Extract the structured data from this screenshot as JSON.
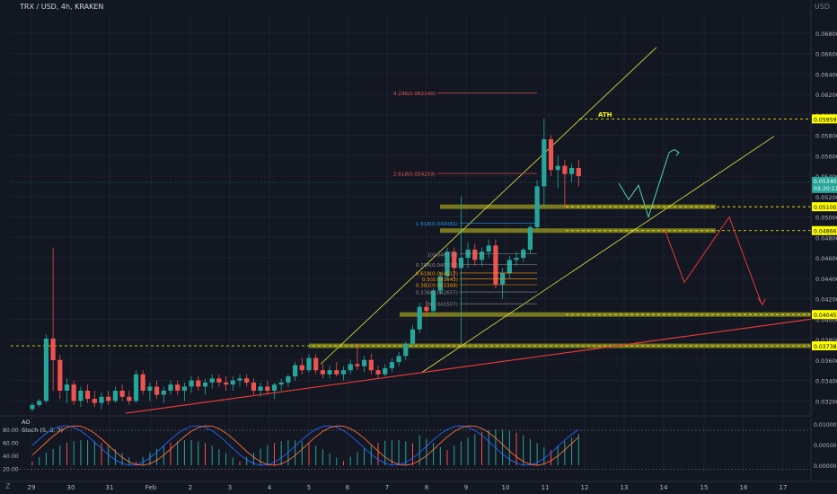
{
  "header": {
    "symbol_line": "TRX / USD, 4h, KRAKEN",
    "currency": "USD"
  },
  "indicators": {
    "ao_label": "AO",
    "stoch_label": "Stoch (5, 3, 3)"
  },
  "corners": {
    "bottom_left": "Z"
  },
  "colors": {
    "background": "#131722",
    "grid": "#1e2230",
    "bull": "#26a69a",
    "bear": "#ef5350",
    "channel": "#e6e63c",
    "trendline": "#e53935",
    "zone": "#8a8a1e",
    "projection_up": "#4fd6a0",
    "projection_down": "#e53935",
    "stoch_k": "#2962ff",
    "stoch_d": "#ff6d3b",
    "label_bg": "#ffff00"
  },
  "chart_data": {
    "type": "candlestick",
    "title": "TRX / USD, 4h, KRAKEN",
    "y_axis": {
      "unit": "USD",
      "range": [
        0.0308,
        0.07
      ],
      "ticks": [
        "0.068000",
        "0.066000",
        "0.064000",
        "0.062000",
        "0.060000",
        "0.058000",
        "0.056000",
        "0.054000",
        "0.052000",
        "0.050000",
        "0.048000",
        "0.046000",
        "0.044000",
        "0.042000",
        "0.040000",
        "0.038000",
        "0.036000",
        "0.034000",
        "0.032000"
      ]
    },
    "x_axis": {
      "ticks": [
        "29",
        "30",
        "31",
        "Feb",
        "2",
        "3",
        "4",
        "5",
        "6",
        "7",
        "8",
        "9",
        "10",
        "11",
        "12",
        "13",
        "14",
        "15",
        "16",
        "17"
      ],
      "range": [
        28.85,
        17.9
      ]
    },
    "horizontal_levels": [
      {
        "label": "0.059595",
        "value": 0.059595
      },
      {
        "label": "0.051000",
        "value": 0.051
      },
      {
        "label": "0.048665",
        "value": 0.048665
      },
      {
        "label": "0.040450",
        "value": 0.04045
      },
      {
        "label": "0.037389",
        "value": 0.037389
      }
    ],
    "current_price": {
      "label": "0.053400",
      "value": 0.0534
    },
    "countdown_label": "03:20:11",
    "annotations": [
      "ATH"
    ],
    "fibonacci": [
      {
        "label": "4.236(0.062140)",
        "value": 0.06214
      },
      {
        "label": "2.618(0.054259)",
        "value": 0.054259
      },
      {
        "label": "1.618(0.049381)",
        "value": 0.049381
      },
      {
        "label": "1(0.046378)",
        "value": 0.046378
      },
      {
        "label": "0.786(0.045336)",
        "value": 0.045336
      },
      {
        "label": "0.618(0.044517)",
        "value": 0.044517
      },
      {
        "label": "0.5(0.043943)",
        "value": 0.043943
      },
      {
        "label": "0.382(0.043368)",
        "value": 0.043368
      },
      {
        "label": "0.236(0.042657)",
        "value": 0.042657
      },
      {
        "label": "0(0.041507)",
        "value": 0.041507
      }
    ],
    "candles": [
      [
        0.0312,
        0.0318,
        0.031,
        0.0316
      ],
      [
        0.0316,
        0.0322,
        0.0314,
        0.032
      ],
      [
        0.032,
        0.0385,
        0.0318,
        0.0381
      ],
      [
        0.0381,
        0.047,
        0.033,
        0.036
      ],
      [
        0.036,
        0.0365,
        0.0322,
        0.033
      ],
      [
        0.033,
        0.0342,
        0.0318,
        0.0336
      ],
      [
        0.0336,
        0.034,
        0.0316,
        0.032
      ],
      [
        0.032,
        0.0334,
        0.0314,
        0.033
      ],
      [
        0.033,
        0.0336,
        0.0318,
        0.0322
      ],
      [
        0.0322,
        0.033,
        0.0314,
        0.0318
      ],
      [
        0.0318,
        0.0328,
        0.0312,
        0.0324
      ],
      [
        0.0324,
        0.033,
        0.0316,
        0.032
      ],
      [
        0.032,
        0.0334,
        0.0318,
        0.033
      ],
      [
        0.033,
        0.0336,
        0.032,
        0.0324
      ],
      [
        0.0324,
        0.033,
        0.0316,
        0.032
      ],
      [
        0.032,
        0.035,
        0.0318,
        0.0346
      ],
      [
        0.0346,
        0.035,
        0.0326,
        0.033
      ],
      [
        0.033,
        0.0338,
        0.032,
        0.0334
      ],
      [
        0.0334,
        0.034,
        0.0322,
        0.0326
      ],
      [
        0.0326,
        0.0334,
        0.0318,
        0.033
      ],
      [
        0.033,
        0.034,
        0.0326,
        0.0336
      ],
      [
        0.0336,
        0.034,
        0.0326,
        0.033
      ],
      [
        0.033,
        0.0338,
        0.032,
        0.0334
      ],
      [
        0.0334,
        0.0344,
        0.0328,
        0.034
      ],
      [
        0.034,
        0.0344,
        0.033,
        0.0334
      ],
      [
        0.0334,
        0.0342,
        0.0326,
        0.0338
      ],
      [
        0.0338,
        0.0346,
        0.0332,
        0.0342
      ],
      [
        0.0342,
        0.0346,
        0.0334,
        0.0338
      ],
      [
        0.0338,
        0.0344,
        0.033,
        0.0336
      ],
      [
        0.0336,
        0.0344,
        0.033,
        0.034
      ],
      [
        0.034,
        0.0346,
        0.0334,
        0.0342
      ],
      [
        0.0342,
        0.0346,
        0.0334,
        0.0338
      ],
      [
        0.0338,
        0.0342,
        0.0326,
        0.033
      ],
      [
        0.033,
        0.0338,
        0.0324,
        0.0334
      ],
      [
        0.0334,
        0.034,
        0.0326,
        0.033
      ],
      [
        0.033,
        0.0338,
        0.0322,
        0.0336
      ],
      [
        0.0336,
        0.0342,
        0.033,
        0.0338
      ],
      [
        0.0338,
        0.0346,
        0.0334,
        0.0344
      ],
      [
        0.0344,
        0.0358,
        0.034,
        0.0355
      ],
      [
        0.0355,
        0.0362,
        0.0346,
        0.035
      ],
      [
        0.035,
        0.0366,
        0.0348,
        0.0362
      ],
      [
        0.0362,
        0.0366,
        0.0346,
        0.035
      ],
      [
        0.035,
        0.0356,
        0.0342,
        0.0346
      ],
      [
        0.0346,
        0.0354,
        0.0342,
        0.035
      ],
      [
        0.035,
        0.0358,
        0.0344,
        0.0346
      ],
      [
        0.0346,
        0.0354,
        0.034,
        0.035
      ],
      [
        0.035,
        0.036,
        0.0346,
        0.0356
      ],
      [
        0.0356,
        0.0376,
        0.035,
        0.0354
      ],
      [
        0.0354,
        0.0364,
        0.0348,
        0.036
      ],
      [
        0.036,
        0.0366,
        0.0346,
        0.035
      ],
      [
        0.035,
        0.0354,
        0.0342,
        0.0346
      ],
      [
        0.0346,
        0.0356,
        0.0344,
        0.0352
      ],
      [
        0.0352,
        0.0362,
        0.0348,
        0.0358
      ],
      [
        0.0358,
        0.0368,
        0.0354,
        0.0364
      ],
      [
        0.0364,
        0.0378,
        0.036,
        0.0376
      ],
      [
        0.0376,
        0.0394,
        0.0372,
        0.039
      ],
      [
        0.039,
        0.0416,
        0.0386,
        0.0412
      ],
      [
        0.0412,
        0.0418,
        0.0404,
        0.0408
      ],
      [
        0.0408,
        0.043,
        0.0404,
        0.0428
      ],
      [
        0.0428,
        0.0446,
        0.0424,
        0.0442
      ],
      [
        0.0442,
        0.047,
        0.0438,
        0.0466
      ],
      [
        0.0466,
        0.047,
        0.044,
        0.045
      ],
      [
        0.045,
        0.052,
        0.0375,
        0.046
      ],
      [
        0.046,
        0.0475,
        0.045,
        0.0468
      ],
      [
        0.0468,
        0.0474,
        0.0452,
        0.0458
      ],
      [
        0.0458,
        0.047,
        0.0452,
        0.0466
      ],
      [
        0.0466,
        0.0478,
        0.046,
        0.0472
      ],
      [
        0.0472,
        0.0478,
        0.043,
        0.0434
      ],
      [
        0.0434,
        0.045,
        0.042,
        0.0445
      ],
      [
        0.0445,
        0.0462,
        0.044,
        0.0458
      ],
      [
        0.0458,
        0.0466,
        0.0452,
        0.046
      ],
      [
        0.046,
        0.047,
        0.0456,
        0.0468
      ],
      [
        0.0468,
        0.0492,
        0.0464,
        0.049
      ],
      [
        0.049,
        0.0536,
        0.0486,
        0.053
      ],
      [
        0.053,
        0.0596,
        0.051,
        0.0576
      ],
      [
        0.0576,
        0.058,
        0.054,
        0.0546
      ],
      [
        0.0546,
        0.056,
        0.0528,
        0.055
      ],
      [
        0.055,
        0.0556,
        0.051,
        0.0542
      ],
      [
        0.0542,
        0.0552,
        0.0534,
        0.0548
      ],
      [
        0.0548,
        0.0556,
        0.053,
        0.054
      ]
    ],
    "oscillator": {
      "label": "AO / Stoch (5, 3, 3)",
      "left_ticks": [
        "80.00",
        "60.00",
        "40.00",
        "20.00"
      ],
      "right_ticks": [
        "0.010000",
        "0.005000",
        "0.000000"
      ]
    }
  }
}
